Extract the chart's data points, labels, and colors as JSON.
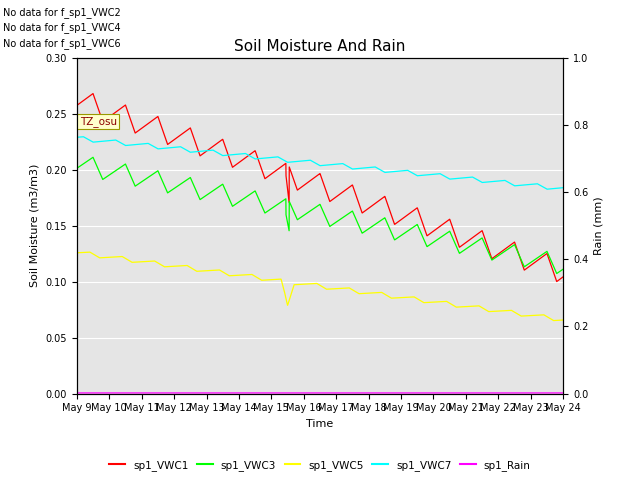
{
  "title": "Soil Moisture And Rain",
  "xlabel": "Time",
  "ylabel_left": "Soil Moisture (m3/m3)",
  "ylabel_right": "Rain (mm)",
  "no_data_text": [
    "No data for f_sp1_VWC2",
    "No data for f_sp1_VWC4",
    "No data for f_sp1_VWC6"
  ],
  "tz_label": "TZ_osu",
  "ylim_left": [
    0.0,
    0.3
  ],
  "ylim_right": [
    0.0,
    1.0
  ],
  "background_color": "#e5e5e5",
  "legend": [
    {
      "label": "sp1_VWC1",
      "color": "red"
    },
    {
      "label": "sp1_VWC3",
      "color": "lime"
    },
    {
      "label": "sp1_VWC5",
      "color": "yellow"
    },
    {
      "label": "sp1_VWC7",
      "color": "cyan"
    },
    {
      "label": "sp1_Rain",
      "color": "magenta"
    }
  ],
  "x_tick_labels": [
    "May 9",
    "May 10",
    "May 11",
    "May 12",
    "May 13",
    "May 14",
    "May 15",
    "May 16",
    "May 17",
    "May 18",
    "May 19",
    "May 20",
    "May 21",
    "May 22",
    "May 23",
    "May 24"
  ],
  "yticks_left": [
    0.0,
    0.05,
    0.1,
    0.15,
    0.2,
    0.25,
    0.3
  ],
  "yticks_right": [
    0.0,
    0.2,
    0.4,
    0.6,
    0.8,
    1.0
  ]
}
